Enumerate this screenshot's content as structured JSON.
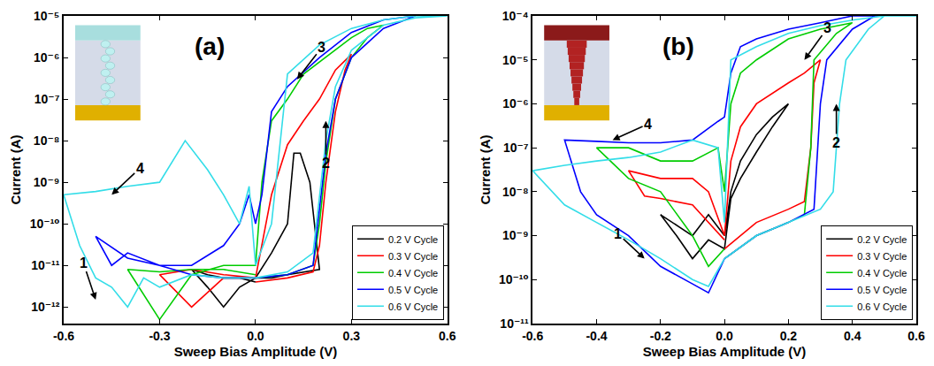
{
  "chart_data": [
    {
      "type": "line",
      "title": "(a)",
      "xlabel": "Sweep Bias Amplitude (V)",
      "ylabel": "Current (A)",
      "log": "y",
      "grid": false,
      "legend": "lower right",
      "xlim": [
        -0.6,
        0.6
      ],
      "xticks": [
        -0.6,
        -0.3,
        {
          "value": 0,
          "label": "0.0"
        },
        0.3,
        0.6
      ],
      "ylim": [
        4e-13,
        1e-05
      ],
      "yticks": [
        {
          "value": 1e-12,
          "label": "10⁻¹²"
        },
        {
          "value": 1e-11,
          "label": "10⁻¹¹"
        },
        {
          "value": 1e-10,
          "label": "10⁻¹⁰"
        },
        {
          "value": 1e-09,
          "label": "10⁻⁹"
        },
        {
          "value": 1e-08,
          "label": "10⁻⁸"
        },
        {
          "value": 1e-07,
          "label": "10⁻⁷"
        },
        {
          "value": 1e-06,
          "label": "10⁻⁶"
        },
        {
          "value": 1e-05,
          "label": "10⁻⁵"
        }
      ],
      "annotations": [
        {
          "text": "1",
          "x": -0.5,
          "y": 1.5e-12
        },
        {
          "text": "2",
          "x": 0.22,
          "y": 3e-08
        },
        {
          "text": "3",
          "x": 0.13,
          "y": 3e-07
        },
        {
          "text": "4",
          "x": -0.45,
          "y": 5e-10
        }
      ],
      "series": [
        {
          "name": "0.2 V Cycle",
          "color": "#000000",
          "x": [
            0,
            0.05,
            0.1,
            0.15,
            0.2,
            0.17,
            0.14,
            0.12,
            0.1,
            0.05,
            0,
            -0.05,
            -0.1,
            -0.15,
            -0.2,
            -0.15,
            -0.1,
            -0.05,
            0
          ],
          "values": [
            5e-12,
            5e-12,
            6e-12,
            7e-12,
            8e-12,
            1e-09,
            5e-09,
            5e-09,
            1e-10,
            2e-11,
            5e-12,
            3e-12,
            1e-12,
            3e-12,
            8e-12,
            6e-12,
            5e-12,
            5e-12,
            4e-12
          ]
        },
        {
          "name": "0.3 V Cycle",
          "color": "#ff0000",
          "x": [
            0,
            0.1,
            0.18,
            0.2,
            0.22,
            0.25,
            0.28,
            0.3,
            0.25,
            0.2,
            0.15,
            0.1,
            0.05,
            0.02,
            0,
            -0.1,
            -0.2,
            -0.3,
            -0.2,
            -0.1,
            0
          ],
          "values": [
            4e-12,
            5e-12,
            7e-12,
            3e-11,
            1e-09,
            5e-08,
            5e-07,
            1.2e-06,
            5e-07,
            1e-07,
            3e-08,
            8e-09,
            5e-10,
            3e-11,
            5e-12,
            5e-12,
            1e-12,
            6e-12,
            8e-12,
            6e-12,
            5e-12
          ]
        },
        {
          "name": "0.4 V Cycle",
          "color": "#00cc00",
          "x": [
            0,
            0.1,
            0.18,
            0.2,
            0.22,
            0.25,
            0.3,
            0.35,
            0.4,
            0.35,
            0.3,
            0.2,
            0.15,
            0.1,
            0.05,
            0.02,
            0,
            -0.1,
            -0.2,
            -0.3,
            -0.4,
            -0.3,
            -0.2,
            -0.1,
            0
          ],
          "values": [
            5e-12,
            6e-12,
            1e-11,
            1e-10,
            3e-09,
            1e-07,
            1e-06,
            3e-06,
            6e-06,
            5e-06,
            3e-06,
            8e-07,
            4e-07,
            1e-07,
            3e-08,
            1e-09,
            1e-11,
            1e-11,
            6e-12,
            5e-13,
            8e-12,
            7e-12,
            8e-12,
            8e-12,
            6e-12
          ]
        },
        {
          "name": "0.5 V Cycle",
          "color": "#0000ff",
          "x": [
            0,
            0.1,
            0.18,
            0.2,
            0.22,
            0.25,
            0.3,
            0.4,
            0.5,
            0.4,
            0.3,
            0.2,
            0.1,
            0.05,
            0.02,
            0,
            -0.02,
            -0.05,
            -0.1,
            -0.2,
            -0.3,
            -0.4,
            -0.5,
            -0.45,
            -0.4,
            -0.3,
            -0.2,
            -0.1,
            0
          ],
          "values": [
            5e-12,
            6e-12,
            1e-11,
            2e-10,
            5e-09,
            1e-07,
            1e-06,
            5e-06,
            1e-05,
            8e-06,
            4e-06,
            1e-06,
            2e-07,
            5e-08,
            5e-10,
            1e-10,
            5e-10,
            1e-10,
            3e-11,
            1e-11,
            1e-11,
            1.5e-11,
            5e-11,
            1e-11,
            2e-11,
            1e-11,
            6e-12,
            5e-12,
            5e-12
          ]
        },
        {
          "name": "0.6 V Cycle",
          "color": "#33dde8",
          "x": [
            0,
            0.1,
            0.18,
            0.2,
            0.22,
            0.25,
            0.3,
            0.4,
            0.5,
            0.6,
            0.5,
            0.4,
            0.3,
            0.2,
            0.1,
            0.05,
            0,
            -0.02,
            -0.05,
            -0.1,
            -0.15,
            -0.22,
            -0.3,
            -0.4,
            -0.5,
            -0.6,
            -0.55,
            -0.5,
            -0.45,
            -0.4,
            -0.35,
            -0.3,
            -0.2,
            -0.1,
            0
          ],
          "values": [
            5e-12,
            7e-12,
            2e-11,
            5e-10,
            1e-08,
            2e-07,
            1.5e-06,
            6e-06,
            9e-06,
            1e-05,
            1e-05,
            8e-06,
            5e-06,
            2e-06,
            4e-07,
            1e-10,
            1e-11,
            8e-10,
            1e-10,
            5e-10,
            2e-09,
            1e-08,
            1e-09,
            8e-10,
            6e-10,
            5e-10,
            3e-11,
            5e-12,
            3e-12,
            1e-12,
            5e-12,
            3e-12,
            6e-12,
            5e-12,
            5e-12
          ]
        }
      ]
    },
    {
      "type": "line",
      "title": "(b)",
      "xlabel": "Sweep Bias Amplitude (V)",
      "ylabel": "Current (A)",
      "log": "y",
      "grid": false,
      "legend": "lower right",
      "xlim": [
        -0.6,
        0.6
      ],
      "xticks": [
        -0.6,
        -0.4,
        -0.2,
        {
          "value": 0,
          "label": "0.0"
        },
        0.2,
        0.4,
        0.6
      ],
      "ylim": [
        1e-11,
        0.0001
      ],
      "yticks": [
        {
          "value": 1e-11,
          "label": "10⁻¹¹"
        },
        {
          "value": 1e-10,
          "label": "10⁻¹⁰"
        },
        {
          "value": 1e-09,
          "label": "10⁻⁹"
        },
        {
          "value": 1e-08,
          "label": "10⁻⁸"
        },
        {
          "value": 1e-07,
          "label": "10⁻⁷"
        },
        {
          "value": 1e-06,
          "label": "10⁻⁶"
        },
        {
          "value": 1e-05,
          "label": "10⁻⁵"
        },
        {
          "value": 0.0001,
          "label": "10⁻⁴"
        }
      ],
      "annotations": [
        {
          "text": "1",
          "x": -0.25,
          "y": 3e-10
        },
        {
          "text": "2",
          "x": 0.35,
          "y": 1e-06
        },
        {
          "text": "3",
          "x": 0.25,
          "y": 1e-05
        },
        {
          "text": "4",
          "x": -0.35,
          "y": 1.5e-07
        }
      ],
      "series": [
        {
          "name": "0.2 V Cycle",
          "color": "#000000",
          "x": [
            0,
            0.02,
            0.05,
            0.1,
            0.15,
            0.2,
            0.15,
            0.1,
            0.05,
            0.02,
            0,
            -0.05,
            -0.1,
            -0.15,
            -0.2,
            -0.1,
            -0.05,
            0
          ],
          "values": [
            1e-09,
            1e-08,
            5e-08,
            2e-07,
            5e-07,
            1e-06,
            3e-07,
            8e-08,
            2e-08,
            7e-09,
            5e-10,
            8e-10,
            3e-10,
            1e-09,
            3e-09,
            1e-09,
            3e-09,
            1e-09
          ]
        },
        {
          "name": "0.3 V Cycle",
          "color": "#ff0000",
          "x": [
            0,
            0.05,
            0.1,
            0.2,
            0.25,
            0.27,
            0.28,
            0.3,
            0.25,
            0.2,
            0.1,
            0.05,
            0.02,
            0,
            -0.05,
            -0.1,
            -0.2,
            -0.3,
            -0.25,
            -0.2,
            -0.1,
            0
          ],
          "values": [
            5e-10,
            1e-09,
            2e-09,
            4e-09,
            6e-09,
            1e-07,
            3e-06,
            1e-05,
            5e-06,
            3e-06,
            1e-06,
            3e-07,
            5e-08,
            1e-09,
            1e-08,
            2e-08,
            2e-08,
            3e-08,
            8e-09,
            7e-09,
            5e-09,
            8e-10
          ]
        },
        {
          "name": "0.4 V Cycle",
          "color": "#00cc00",
          "x": [
            0,
            0.1,
            0.2,
            0.25,
            0.27,
            0.28,
            0.35,
            0.4,
            0.3,
            0.2,
            0.1,
            0.05,
            0.02,
            0,
            -0.02,
            -0.1,
            -0.2,
            -0.3,
            -0.4,
            -0.3,
            -0.2,
            -0.1,
            -0.05,
            0
          ],
          "values": [
            3e-10,
            1e-09,
            2e-09,
            3e-09,
            1e-07,
            1e-05,
            4e-05,
            7e-05,
            5e-05,
            3e-05,
            1e-05,
            5e-06,
            1e-06,
            1e-08,
            1e-07,
            5e-08,
            5e-08,
            1e-07,
            1e-07,
            2e-08,
            1e-08,
            1e-09,
            2e-10,
            5e-10
          ]
        },
        {
          "name": "0.5 V Cycle",
          "color": "#0000ff",
          "x": [
            0,
            0.1,
            0.2,
            0.28,
            0.3,
            0.32,
            0.4,
            0.47,
            0.5,
            0.4,
            0.3,
            0.2,
            0.1,
            0.05,
            0.02,
            0,
            -0.02,
            -0.1,
            -0.2,
            -0.3,
            -0.4,
            -0.5,
            -0.45,
            -0.4,
            -0.3,
            -0.2,
            -0.1,
            -0.05,
            0
          ],
          "values": [
            3e-10,
            1e-09,
            2e-09,
            4e-09,
            1e-06,
            1e-05,
            5e-05,
            0.0001,
            0.0001,
            0.0001,
            7e-05,
            5e-05,
            3e-05,
            2e-05,
            5e-06,
            5e-07,
            4e-07,
            1.5e-07,
            1.3e-07,
            1.3e-07,
            1.4e-07,
            1.5e-07,
            1e-08,
            3e-09,
            1e-09,
            2e-10,
            8e-11,
            5e-11,
            3e-10
          ]
        },
        {
          "name": "0.6 V Cycle",
          "color": "#33dde8",
          "x": [
            0,
            0.1,
            0.2,
            0.3,
            0.34,
            0.36,
            0.38,
            0.45,
            0.5,
            0.6,
            0.5,
            0.4,
            0.3,
            0.2,
            0.1,
            0.02,
            0,
            -0.02,
            -0.1,
            -0.2,
            -0.3,
            -0.4,
            -0.5,
            -0.6,
            -0.5,
            -0.4,
            -0.3,
            -0.2,
            -0.1,
            -0.05,
            0
          ],
          "values": [
            3e-10,
            1e-09,
            2e-09,
            4e-09,
            1e-08,
            1e-06,
            1e-05,
            5e-05,
            0.0001,
            0.0001,
            0.0001,
            8e-05,
            6e-05,
            4e-05,
            2e-05,
            1e-05,
            2e-09,
            1e-07,
            1.5e-07,
            8e-08,
            6e-08,
            5e-08,
            4e-08,
            3e-08,
            5e-09,
            2e-09,
            8e-10,
            3e-10,
            1e-10,
            7e-11,
            3e-10
          ]
        }
      ]
    }
  ]
}
